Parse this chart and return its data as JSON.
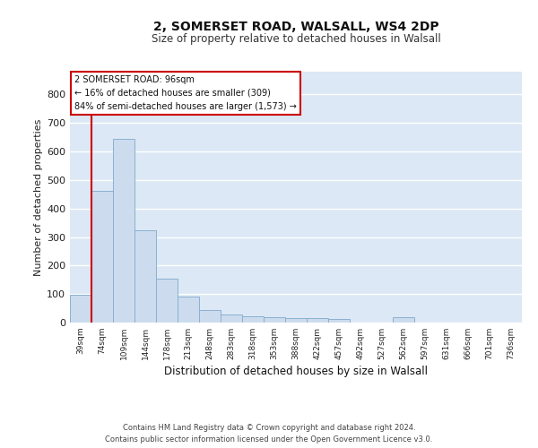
{
  "title1": "2, SOMERSET ROAD, WALSALL, WS4 2DP",
  "title2": "Size of property relative to detached houses in Walsall",
  "xlabel": "Distribution of detached houses by size in Walsall",
  "ylabel": "Number of detached properties",
  "categories": [
    "39sqm",
    "74sqm",
    "109sqm",
    "144sqm",
    "178sqm",
    "213sqm",
    "248sqm",
    "283sqm",
    "318sqm",
    "353sqm",
    "388sqm",
    "422sqm",
    "457sqm",
    "492sqm",
    "527sqm",
    "562sqm",
    "597sqm",
    "631sqm",
    "666sqm",
    "701sqm",
    "736sqm"
  ],
  "values": [
    97,
    462,
    645,
    323,
    155,
    90,
    45,
    28,
    22,
    18,
    17,
    15,
    12,
    0,
    0,
    20,
    0,
    0,
    0,
    0,
    0
  ],
  "bar_color": "#ccdcee",
  "bar_edge_color": "#8ab0d0",
  "background_color": "#dce8f5",
  "grid_color": "#ffffff",
  "annotation_text": "2 SOMERSET ROAD: 96sqm\n← 16% of detached houses are smaller (309)\n84% of semi-detached houses are larger (1,573) →",
  "vline_color": "#cc0000",
  "vline_x": 0.5,
  "footer_text": "Contains HM Land Registry data © Crown copyright and database right 2024.\nContains public sector information licensed under the Open Government Licence v3.0.",
  "ylim": [
    0,
    880
  ],
  "yticks": [
    0,
    100,
    200,
    300,
    400,
    500,
    600,
    700,
    800
  ]
}
